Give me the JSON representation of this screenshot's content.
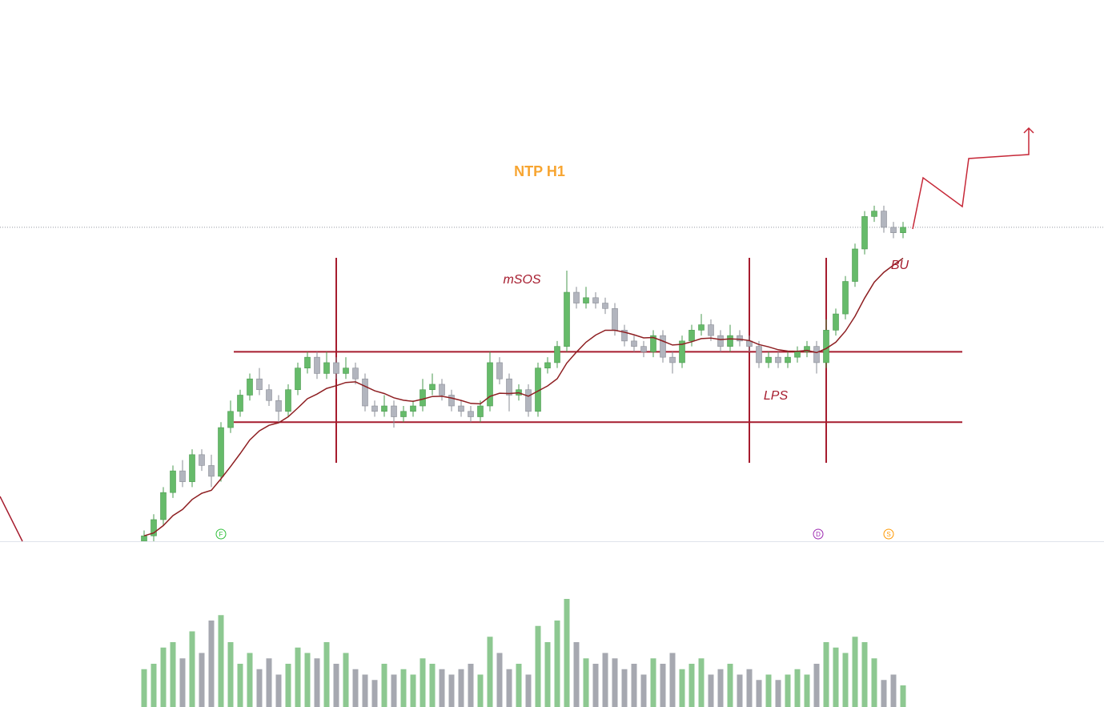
{
  "chart_data": {
    "type": "candlestick",
    "title": "NTP H1",
    "annotations": [
      "mSOS",
      "LPS",
      "BU"
    ],
    "events": [
      "F",
      "D",
      "S"
    ],
    "open": [
      0,
      1,
      4,
      9,
      13,
      11,
      16,
      14,
      12,
      21,
      24,
      27,
      30,
      28,
      26,
      24,
      28,
      32,
      34,
      31,
      33,
      31,
      32,
      30,
      25,
      24,
      25,
      23,
      24,
      25,
      28,
      29,
      27,
      25,
      24,
      23,
      25,
      33,
      30,
      27,
      28,
      24,
      32,
      33,
      36,
      46,
      44,
      45,
      44,
      43,
      39,
      37,
      36,
      35,
      38,
      34,
      33,
      37,
      39,
      40,
      38,
      36,
      38,
      37,
      36,
      33,
      34,
      33,
      34,
      35,
      36,
      33,
      39,
      42,
      48,
      54,
      60,
      61,
      58,
      57
    ],
    "high": [
      2,
      5,
      10,
      14,
      15,
      17,
      17,
      16,
      22,
      26,
      28,
      31,
      32,
      29,
      27,
      29,
      33,
      35,
      35,
      35,
      34,
      34,
      33,
      31,
      26,
      27,
      26,
      25,
      26,
      30,
      31,
      30,
      28,
      26,
      25,
      26,
      35,
      34,
      31,
      29,
      29,
      33,
      34,
      37,
      50,
      47,
      47,
      46,
      45,
      44,
      40,
      38,
      37,
      39,
      39,
      35,
      38,
      40,
      42,
      41,
      39,
      40,
      39,
      38,
      37,
      35,
      35,
      35,
      36,
      37,
      37,
      41,
      43,
      49,
      55,
      61,
      62,
      62,
      59,
      59
    ],
    "low": [
      0,
      0,
      3,
      8,
      10,
      10,
      13,
      10,
      11,
      20,
      23,
      26,
      27,
      25,
      22,
      23,
      27,
      31,
      30,
      30,
      30,
      30,
      29,
      24,
      23,
      23,
      21,
      22,
      23,
      24,
      27,
      26,
      24,
      23,
      22,
      22,
      24,
      29,
      24,
      26,
      23,
      23,
      31,
      32,
      35,
      43,
      43,
      43,
      42,
      38,
      36,
      35,
      34,
      34,
      33,
      31,
      32,
      36,
      38,
      37,
      35,
      35,
      36,
      35,
      32,
      32,
      32,
      32,
      33,
      34,
      31,
      32,
      38,
      41,
      47,
      53,
      59,
      57,
      56,
      56
    ],
    "close": [
      1,
      4,
      9,
      13,
      11,
      16,
      14,
      12,
      21,
      24,
      27,
      30,
      28,
      26,
      24,
      28,
      32,
      34,
      31,
      33,
      31,
      32,
      30,
      25,
      24,
      25,
      23,
      24,
      25,
      28,
      29,
      27,
      25,
      24,
      23,
      25,
      33,
      30,
      27,
      28,
      24,
      32,
      33,
      36,
      46,
      44,
      45,
      44,
      43,
      39,
      37,
      36,
      35,
      38,
      34,
      33,
      37,
      39,
      40,
      38,
      36,
      38,
      37,
      36,
      33,
      34,
      33,
      34,
      35,
      36,
      33,
      39,
      42,
      48,
      54,
      60,
      61,
      58,
      57,
      58
    ],
    "volume": [
      35,
      40,
      55,
      60,
      45,
      70,
      50,
      80,
      85,
      60,
      40,
      50,
      35,
      45,
      30,
      40,
      55,
      50,
      45,
      60,
      40,
      50,
      35,
      30,
      25,
      40,
      30,
      35,
      30,
      45,
      40,
      35,
      30,
      35,
      40,
      30,
      65,
      50,
      35,
      40,
      30,
      75,
      60,
      80,
      100,
      60,
      45,
      40,
      50,
      45,
      35,
      40,
      30,
      45,
      40,
      50,
      35,
      40,
      45,
      30,
      35,
      40,
      30,
      35,
      25,
      30,
      25,
      30,
      35,
      30,
      40,
      60,
      55,
      50,
      65,
      60,
      45,
      25,
      30,
      20
    ],
    "ylim": [
      0,
      100
    ],
    "vlim": [
      0,
      100
    ],
    "levels": [
      35,
      22
    ],
    "verticals": [
      20,
      63,
      71
    ],
    "up_color": "#66bb6a",
    "down_color": "#b2b5be",
    "level_color": "#a61c2e",
    "ma_color": "#8e1f22"
  }
}
